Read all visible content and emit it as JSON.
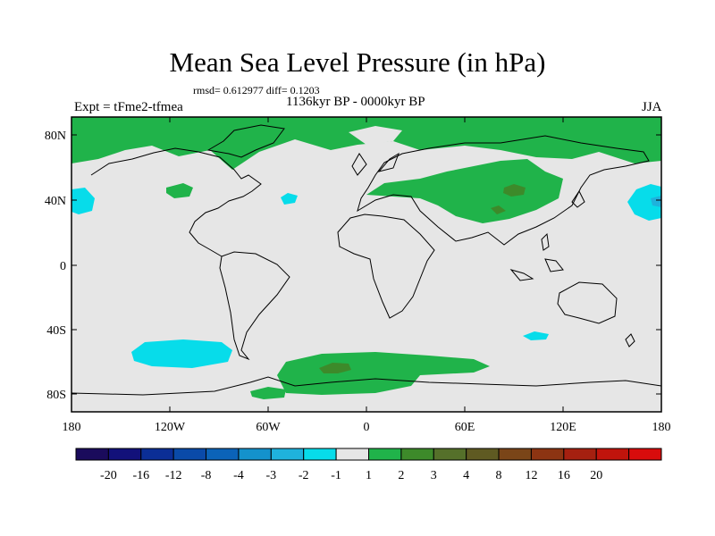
{
  "title": "Mean Sea Level Pressure (in hPa)",
  "stats_text": "rmsd= 0.612977 diff= 0.1203",
  "period": "1136kyr BP - 0000kyr BP",
  "experiment": "Expt = tFme2-tfmea",
  "season": "JJA",
  "lat_ticks": [
    "80N",
    "40N",
    "0",
    "40S",
    "80S"
  ],
  "lon_ticks": [
    "180",
    "120W",
    "60W",
    "0",
    "60E",
    "120E",
    "180"
  ],
  "colorbar": {
    "colors": [
      "#1a0b5c",
      "#12117a",
      "#0b2e96",
      "#0a4aa8",
      "#0b63b8",
      "#1492cc",
      "#1fb2dc",
      "#07dcea",
      "#e6e6e6",
      "#20b34a",
      "#3d8a2a",
      "#55702a",
      "#5f5a22",
      "#7a4518",
      "#8c3412",
      "#a52010",
      "#c0140c",
      "#d80c0c"
    ],
    "labels": [
      "-20",
      "-16",
      "-12",
      "-8",
      "-4",
      "-3",
      "-2",
      "-1",
      "1",
      "2",
      "3",
      "4",
      "8",
      "12",
      "16",
      "20"
    ]
  }
}
